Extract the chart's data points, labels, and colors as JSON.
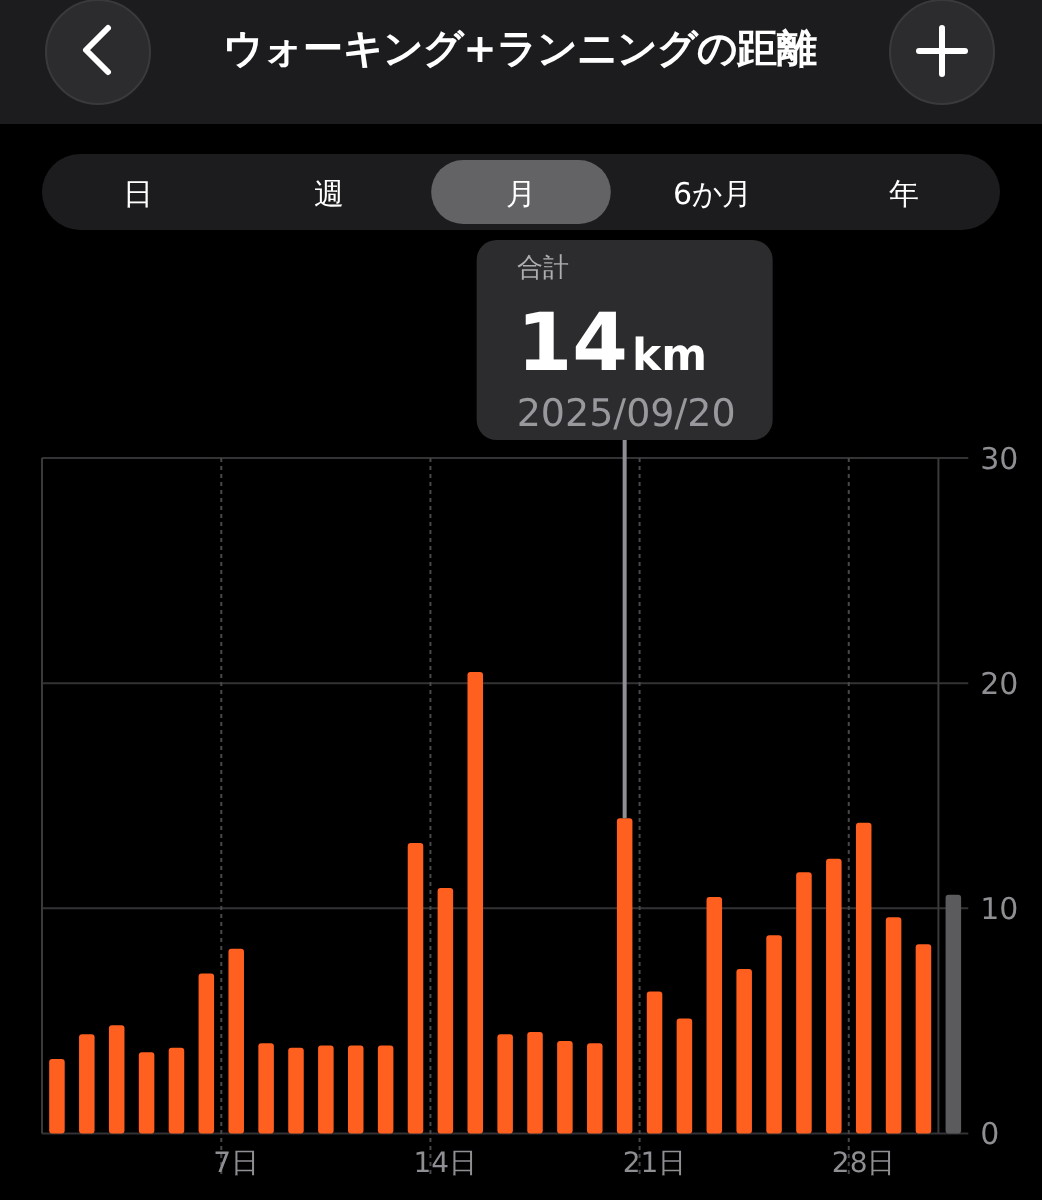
{
  "chart_data": {
    "type": "bar",
    "title": "ウォーキング+ランニングの距離",
    "categories": [
      null,
      null,
      null,
      null,
      null,
      null,
      "7日",
      null,
      null,
      null,
      null,
      null,
      null,
      "14日",
      null,
      null,
      null,
      null,
      null,
      null,
      "21日",
      null,
      null,
      null,
      null,
      null,
      null,
      "28日",
      null,
      null,
      null
    ],
    "values": [
      3.3,
      4.4,
      4.8,
      3.6,
      3.8,
      7.1,
      8.2,
      4.0,
      3.8,
      3.9,
      3.9,
      3.9,
      12.9,
      10.9,
      20.5,
      4.4,
      4.5,
      4.1,
      4.0,
      14,
      6.3,
      5.1,
      10.5,
      7.3,
      8.8,
      11.6,
      12.2,
      13.8,
      9.6,
      8.4,
      10.6
    ],
    "colors": [
      "#ff5f1f",
      "#ff5f1f",
      "#ff5f1f",
      "#ff5f1f",
      "#ff5f1f",
      "#ff5f1f",
      "#ff5f1f",
      "#ff5f1f",
      "#ff5f1f",
      "#ff5f1f",
      "#ff5f1f",
      "#ff5f1f",
      "#ff5f1f",
      "#ff5f1f",
      "#ff5f1f",
      "#ff5f1f",
      "#ff5f1f",
      "#ff5f1f",
      "#ff5f1f",
      "#ff5f1f",
      "#ff5f1f",
      "#ff5f1f",
      "#ff5f1f",
      "#ff5f1f",
      "#ff5f1f",
      "#ff5f1f",
      "#ff5f1f",
      "#ff5f1f",
      "#ff5f1f",
      "#ff5f1f",
      "#5b5b5e"
    ],
    "value_labels": [
      null,
      null,
      null,
      null,
      null,
      null,
      null,
      null,
      null,
      null,
      null,
      null,
      null,
      null,
      null,
      null,
      null,
      null,
      null,
      "14km",
      null,
      null,
      null,
      null,
      null,
      null,
      null,
      null,
      null,
      null,
      null
    ],
    "annotations": [
      "日",
      "週",
      "月",
      "6か月",
      "年",
      "合計",
      "2025/09/20"
    ],
    "ylim": [
      0,
      30
    ],
    "yticks": [
      0,
      10,
      20,
      30
    ],
    "grid": true
  }
}
